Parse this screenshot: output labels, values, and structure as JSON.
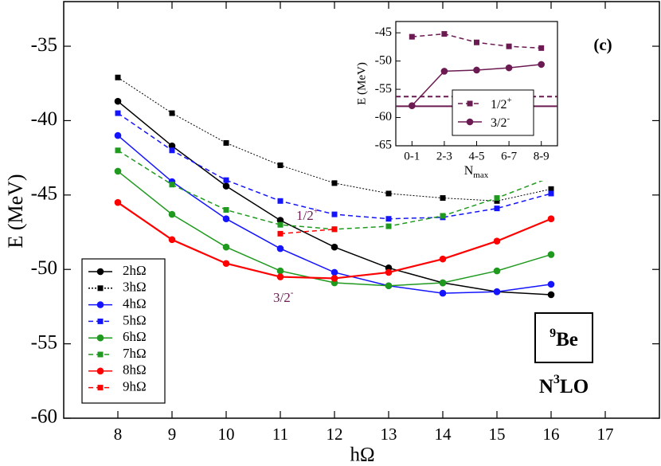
{
  "chart_data": [
    {
      "type": "line",
      "xlabel": "hΩ",
      "ylabel": "E (MeV)",
      "xlim": [
        7,
        18
      ],
      "xticks": [
        8,
        9,
        10,
        11,
        12,
        13,
        14,
        15,
        16,
        17
      ],
      "ylim": [
        -60,
        -32
      ],
      "yticks": [
        -60,
        -55,
        -50,
        -45,
        -40,
        -35
      ],
      "legend": "lower left",
      "x": [
        8,
        9,
        10,
        11,
        12,
        13,
        14,
        15,
        16
      ],
      "series": [
        {
          "name": "2hΩ",
          "color": "#000000",
          "marker": "circle",
          "dash": "solid",
          "values": [
            -38.7,
            -41.7,
            -44.4,
            -46.7,
            -48.5,
            -49.9,
            -50.9,
            -51.5,
            -51.7
          ]
        },
        {
          "name": "3hΩ",
          "color": "#000000",
          "marker": "square",
          "dash": "dotted",
          "values": [
            -37.1,
            -39.5,
            -41.5,
            -43.0,
            -44.2,
            -44.9,
            -45.2,
            -45.4,
            -44.6
          ]
        },
        {
          "name": "4hΩ",
          "color": "#1414ff",
          "marker": "circle",
          "dash": "solid",
          "values": [
            -41.0,
            -44.1,
            -46.6,
            -48.6,
            -50.2,
            -51.1,
            -51.6,
            -51.5,
            -51.0
          ]
        },
        {
          "name": "5hΩ",
          "color": "#1414ff",
          "marker": "square",
          "dash": "dashed",
          "values": [
            -39.5,
            -42.0,
            -44.0,
            -45.4,
            -46.3,
            -46.6,
            -46.5,
            -45.9,
            -44.9
          ]
        },
        {
          "name": "6hΩ",
          "color": "#1f9a1f",
          "marker": "circle",
          "dash": "solid",
          "values": [
            -43.4,
            -46.3,
            -48.5,
            -50.1,
            -50.9,
            -51.1,
            -50.9,
            -50.1,
            -49.0
          ]
        },
        {
          "name": "7hΩ",
          "color": "#1f9a1f",
          "marker": "square",
          "dash": "dashed",
          "values": [
            -42.0,
            -44.3,
            -46.0,
            -47.0,
            -47.3,
            -47.1,
            -46.4,
            -45.2,
            -43.8
          ]
        },
        {
          "name": "8hΩ",
          "color": "#ff0000",
          "marker": "circle",
          "dash": "solid",
          "values": [
            -45.5,
            -48.0,
            -49.6,
            -50.5,
            -50.6,
            -50.2,
            -49.3,
            -48.1,
            -46.6
          ]
        },
        {
          "name": "9hΩ",
          "color": "#ff0000",
          "marker": "square",
          "dash": "dashed",
          "values": [
            null,
            null,
            null,
            -47.6,
            -47.3,
            null,
            null,
            null,
            null
          ]
        }
      ],
      "annotations": [
        {
          "text": "1/2",
          "sup": "+",
          "color": "#6b1a52"
        },
        {
          "text": "3/2",
          "sup": "-",
          "color": "#6b1a52"
        }
      ],
      "nucleus": {
        "sup": "9",
        "text": "Be"
      },
      "interaction": {
        "text": "N",
        "sup": "3",
        "rest": "LO"
      }
    },
    {
      "type": "line",
      "panel_label": "(c)",
      "xlabel": {
        "text": "N",
        "sub": "max"
      },
      "ylabel": "E (MeV)",
      "categories": [
        "0-1",
        "2-3",
        "4-5",
        "6-7",
        "8-9"
      ],
      "ylim": [
        -65,
        -43
      ],
      "yticks": [
        -65,
        -60,
        -55,
        -50,
        -45
      ],
      "series": [
        {
          "name": "1/2",
          "name_sup": "+",
          "color": "#6b1a52",
          "marker": "square",
          "dash": "dashed",
          "values": [
            -45.7,
            -45.2,
            -46.7,
            -47.4,
            -47.7
          ]
        },
        {
          "name": "3/2",
          "name_sup": "-",
          "color": "#6b1a52",
          "marker": "circle",
          "dash": "solid",
          "values": [
            -57.9,
            -51.8,
            -51.6,
            -51.2,
            -50.6
          ]
        }
      ],
      "reference_lines": [
        {
          "value": -56.3,
          "color": "#6b1a52",
          "dash": "dashed"
        },
        {
          "value": -58.0,
          "color": "#6b1a52",
          "dash": "solid"
        }
      ]
    }
  ]
}
